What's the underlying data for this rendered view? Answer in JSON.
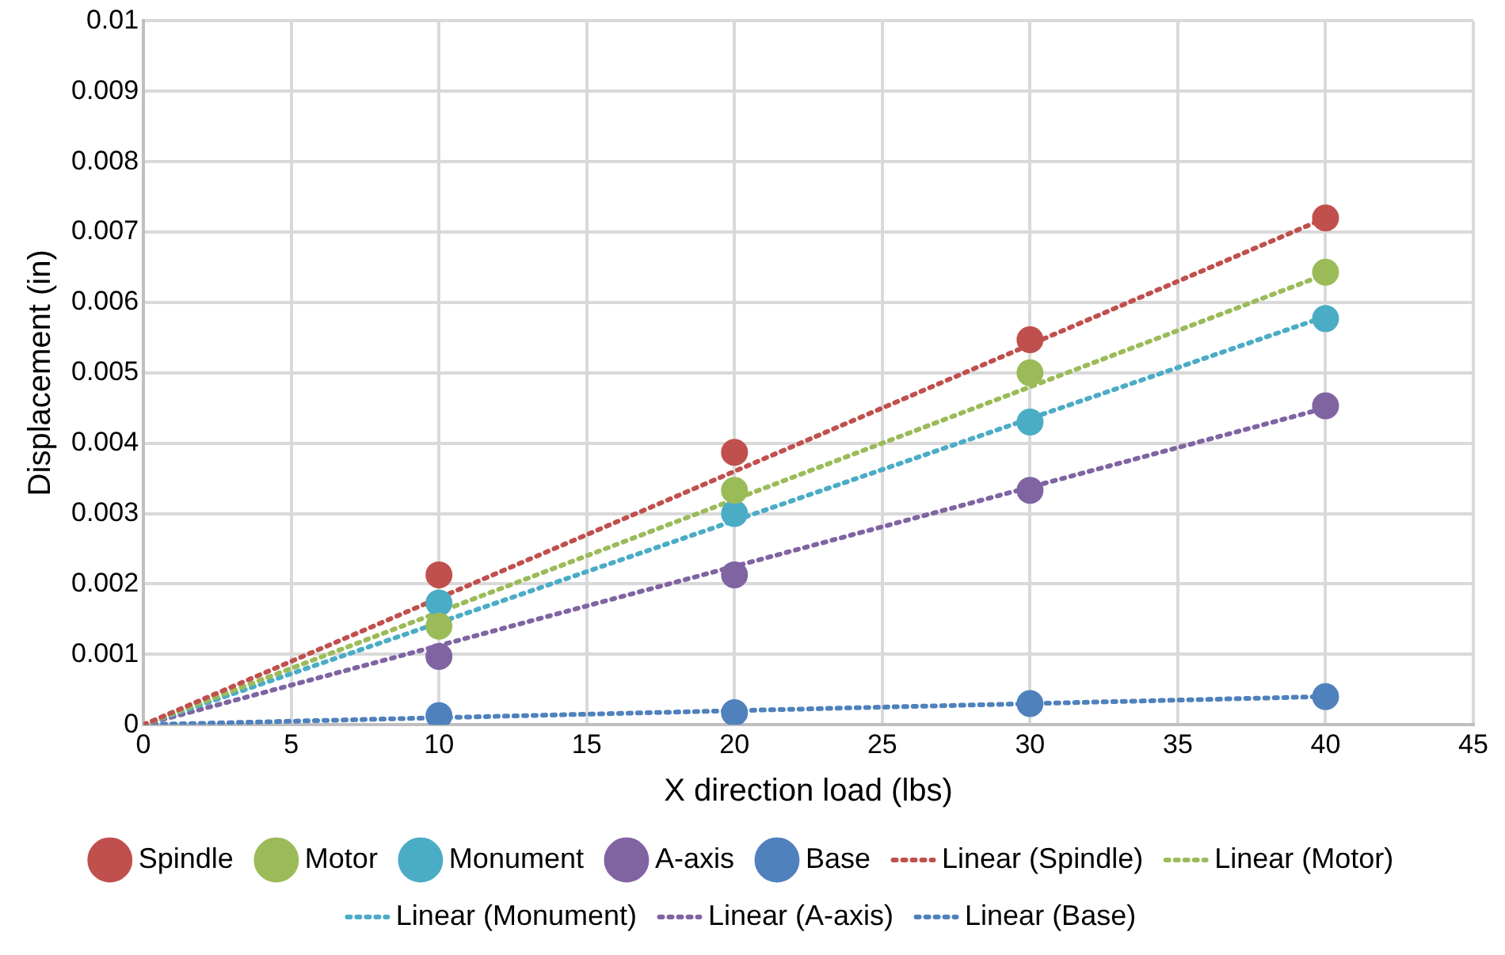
{
  "chart_data": {
    "type": "scatter",
    "xlabel": "X direction load (lbs)",
    "ylabel": "Displacement (in)",
    "xlim": [
      0,
      45
    ],
    "xticks": [
      0,
      5,
      10,
      15,
      20,
      25,
      30,
      35,
      40,
      45
    ],
    "ylim": [
      0,
      0.01
    ],
    "yticks": [
      0,
      0.001,
      0.002,
      0.003,
      0.004,
      0.005,
      0.006,
      0.007,
      0.008,
      0.009,
      0.01
    ],
    "grid": true,
    "legend": "bottom",
    "marker": "circle",
    "series": [
      {
        "name": "Spindle",
        "color": "#c0504d",
        "x": [
          10,
          20,
          30,
          40
        ],
        "values": [
          0.00213,
          0.00387,
          0.00547,
          0.0072
        ]
      },
      {
        "name": "Motor",
        "color": "#9bbb59",
        "x": [
          10,
          20,
          30,
          40
        ],
        "values": [
          0.0014,
          0.00333,
          0.005,
          0.00643
        ]
      },
      {
        "name": "Monument",
        "color": "#4bacc6",
        "x": [
          10,
          20,
          30,
          40
        ],
        "values": [
          0.00173,
          0.003,
          0.0043,
          0.00577
        ]
      },
      {
        "name": "A-axis",
        "color": "#8064a2",
        "x": [
          10,
          20,
          30,
          40
        ],
        "values": [
          0.00097,
          0.00213,
          0.00333,
          0.00453
        ]
      },
      {
        "name": "Base",
        "color": "#4f81bd",
        "x": [
          10,
          20,
          30,
          40
        ],
        "values": [
          0.00013,
          0.00017,
          0.0003,
          0.0004
        ]
      },
      {
        "name": "Linear (Spindle)",
        "type": "line",
        "line_style": "dotted",
        "marker": "none",
        "color": "#c0504d",
        "x": [
          0,
          40
        ],
        "values": [
          0,
          0.0072
        ]
      },
      {
        "name": "Linear (Motor)",
        "type": "line",
        "line_style": "dotted",
        "marker": "none",
        "color": "#9bbb59",
        "x": [
          0,
          40
        ],
        "values": [
          0,
          0.0064
        ]
      },
      {
        "name": "Linear (Monument)",
        "type": "line",
        "line_style": "dotted",
        "marker": "none",
        "color": "#4bacc6",
        "x": [
          0,
          40
        ],
        "values": [
          0,
          0.0058
        ]
      },
      {
        "name": "Linear (A-axis)",
        "type": "line",
        "line_style": "dotted",
        "marker": "none",
        "color": "#8064a2",
        "x": [
          0,
          40
        ],
        "values": [
          0,
          0.0045
        ]
      },
      {
        "name": "Linear (Base)",
        "type": "line",
        "line_style": "dotted",
        "marker": "none",
        "color": "#4f81bd",
        "x": [
          0,
          40
        ],
        "values": [
          0,
          0.0004
        ]
      }
    ]
  }
}
